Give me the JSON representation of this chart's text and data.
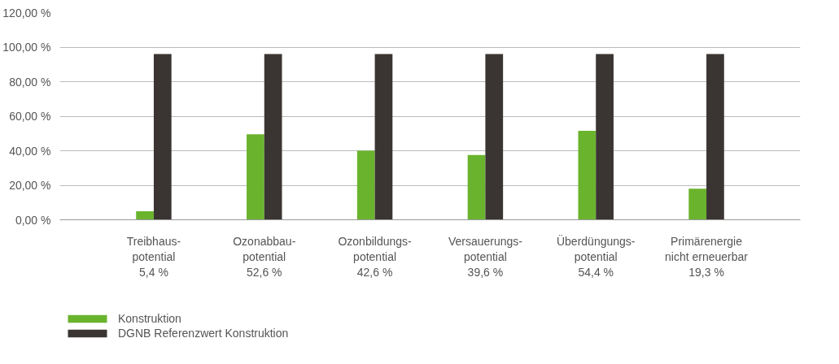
{
  "chart_data": {
    "type": "bar",
    "categories": [
      "Treibhaus-\npotential\n5,4 %",
      "Ozonabbau-\npotential\n52,6 %",
      "Ozonbildungs-\npotential\n42,6 %",
      "Versauerungs-\npotential\n39,6 %",
      "Überdüngungs-\npotential\n54,4 %",
      "Primärenergie\nnicht erneuerbar\n19,3 %"
    ],
    "series": [
      {
        "name": "Konstruktion",
        "color": "#6ab42d",
        "values": [
          5,
          49.5,
          40,
          37.5,
          51.5,
          18
        ]
      },
      {
        "name": "DGNB Referenzwert Konstruktion",
        "color": "#3a3532",
        "values": [
          96,
          96,
          96,
          96,
          96,
          96
        ]
      }
    ],
    "ylim": [
      0,
      120
    ],
    "yticks": [
      {
        "value": 0,
        "label": "0,00 %"
      },
      {
        "value": 20,
        "label": "20,00 %"
      },
      {
        "value": 40,
        "label": "40,00 %"
      },
      {
        "value": 60,
        "label": "60,00 %"
      },
      {
        "value": 80,
        "label": "80,00 %"
      },
      {
        "value": 100,
        "label": "100,00 %"
      },
      {
        "value": 120,
        "label": "120,00 %"
      }
    ],
    "grid": "y",
    "legend": "bottom left"
  }
}
